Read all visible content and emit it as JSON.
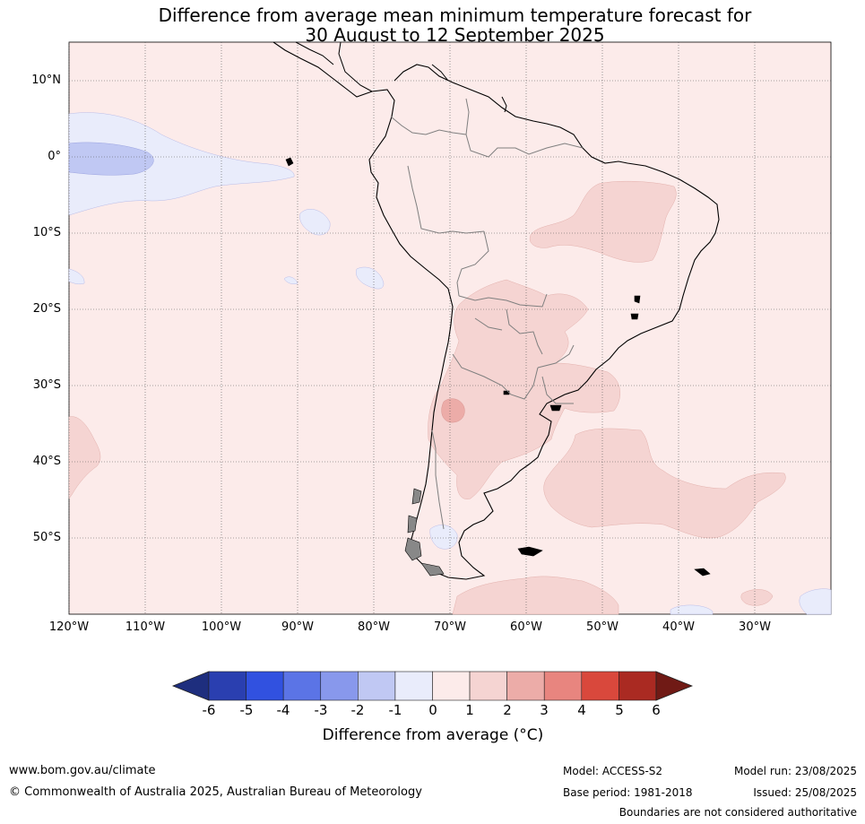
{
  "title": {
    "line1": "Difference from average mean minimum temperature forecast for",
    "line2": "30 August to 12 September 2025"
  },
  "map": {
    "lat_labels": [
      "10°N",
      "0°",
      "10°S",
      "20°S",
      "30°S",
      "40°S",
      "50°S"
    ],
    "lon_labels": [
      "120°W",
      "110°W",
      "100°W",
      "90°W",
      "80°W",
      "70°W",
      "60°W",
      "50°W",
      "40°W",
      "30°W"
    ],
    "extent": {
      "lon_min": -120,
      "lon_max": -20,
      "lat_min": -60,
      "lat_max": 15
    },
    "colors": {
      "ocean_default": "#fcebea",
      "land_default": "#fcebea",
      "coast": "#000000",
      "borders": "#7f7f7f"
    }
  },
  "colorbar": {
    "ticks": [
      "-6",
      "-5",
      "-4",
      "-3",
      "-2",
      "-1",
      "0",
      "1",
      "2",
      "3",
      "4",
      "5",
      "6"
    ],
    "colors": [
      "#1e2e7e",
      "#2a3fb0",
      "#3151e0",
      "#5b74e6",
      "#8898ec",
      "#c0c8f3",
      "#e9ecfb",
      "#fcebea",
      "#f5d4d2",
      "#ecaca8",
      "#e8857f",
      "#d9483c",
      "#aa2a22",
      "#701a15"
    ],
    "label": "Difference from average (°C)"
  },
  "footer": {
    "website": "www.bom.gov.au/climate",
    "copyright": "© Commonwealth of Australia 2025, Australian Bureau of Meteorology",
    "model": "Model: ACCESS-S2",
    "base_period": "Base period: 1981-2018",
    "model_run": "Model run: 23/08/2025",
    "issued": "Issued: 25/08/2025",
    "disclaimer": "Boundaries are not considered authoritative"
  }
}
